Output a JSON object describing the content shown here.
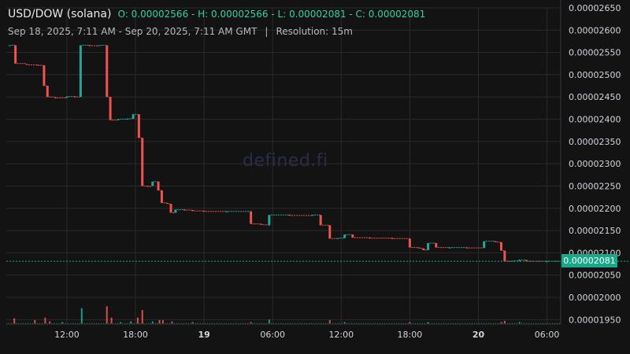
{
  "header": {
    "pair": "USD/DOW (solana)",
    "ohlc": "O: 0.00002566 - H: 0.00002566 - L: 0.00002081 - C: 0.00002081",
    "range": "Sep 18, 2025, 7:11 AM - Sep 20, 2025, 7:11 AM GMT",
    "separator": "|",
    "resolution": "Resolution: 15m"
  },
  "watermark": "defined.fi",
  "last_price_label": "0.00002081",
  "colors": {
    "up": "#26a69a",
    "down": "#ef5350",
    "background": "#131313",
    "grid": "#2a2a2a",
    "axis_text": "#d1d4dc",
    "last_price_tag": "#1aa88a"
  },
  "chart_data": {
    "type": "candlestick",
    "title": "USD/DOW (solana)",
    "resolution": "15m",
    "ylim": [
      1.94e-05,
      2.65e-05
    ],
    "y_ticks": [
      "0.00002650",
      "0.00002600",
      "0.00002550",
      "0.00002500",
      "0.00002450",
      "0.00002400",
      "0.00002350",
      "0.00002300",
      "0.00002250",
      "0.00002200",
      "0.00002150",
      "0.00002100",
      "0.00002050",
      "0.00002000",
      "0.00001950"
    ],
    "x_ticks": [
      {
        "label": "12:00",
        "t": 5.0
      },
      {
        "label": "18:00",
        "t": 11.0
      },
      {
        "label": "19",
        "t": 17.0,
        "bold": true
      },
      {
        "label": "06:00",
        "t": 23.0
      },
      {
        "label": "12:00",
        "t": 29.0
      },
      {
        "label": "18:00",
        "t": 35.0
      },
      {
        "label": "20",
        "t": 41.0,
        "bold": true
      },
      {
        "label": "06:00",
        "t": 47.0
      }
    ],
    "candles": [
      {
        "t": 0.0,
        "o": 2.566e-05,
        "h": 2.566e-05,
        "l": 2.566e-05,
        "c": 2.566e-05
      },
      {
        "t": 0.5,
        "o": 2.566e-05,
        "h": 2.566e-05,
        "l": 2.525e-05,
        "c": 2.525e-05
      },
      {
        "t": 1.5,
        "o": 2.524e-05,
        "h": 2.524e-05,
        "l": 2.522e-05,
        "c": 2.522e-05
      },
      {
        "t": 2.5,
        "o": 2.522e-05,
        "h": 2.522e-05,
        "l": 2.52e-05,
        "c": 2.521e-05
      },
      {
        "t": 3.0,
        "o": 2.521e-05,
        "h": 2.521e-05,
        "l": 2.475e-05,
        "c": 2.475e-05
      },
      {
        "t": 3.3,
        "o": 2.475e-05,
        "h": 2.475e-05,
        "l": 2.45e-05,
        "c": 2.45e-05
      },
      {
        "t": 4.0,
        "o": 2.449e-05,
        "h": 2.449e-05,
        "l": 2.447e-05,
        "c": 2.448e-05
      },
      {
        "t": 5.0,
        "o": 2.448e-05,
        "h": 2.451e-05,
        "l": 2.448e-05,
        "c": 2.451e-05
      },
      {
        "t": 5.7,
        "o": 2.451e-05,
        "h": 2.452e-05,
        "l": 2.45e-05,
        "c": 2.45e-05
      },
      {
        "t": 6.2,
        "o": 2.45e-05,
        "h": 2.566e-05,
        "l": 2.45e-05,
        "c": 2.566e-05
      },
      {
        "t": 7.0,
        "o": 2.566e-05,
        "h": 2.567e-05,
        "l": 2.565e-05,
        "c": 2.565e-05
      },
      {
        "t": 7.8,
        "o": 2.565e-05,
        "h": 2.566e-05,
        "l": 2.565e-05,
        "c": 2.566e-05
      },
      {
        "t": 8.5,
        "o": 2.566e-05,
        "h": 2.566e-05,
        "l": 2.45e-05,
        "c": 2.45e-05
      },
      {
        "t": 8.8,
        "o": 2.45e-05,
        "h": 2.45e-05,
        "l": 2.398e-05,
        "c": 2.398e-05
      },
      {
        "t": 9.5,
        "o": 2.398e-05,
        "h": 2.401e-05,
        "l": 2.398e-05,
        "c": 2.4e-05
      },
      {
        "t": 10.3,
        "o": 2.4e-05,
        "h": 2.402e-05,
        "l": 2.4e-05,
        "c": 2.401e-05
      },
      {
        "t": 10.8,
        "o": 2.401e-05,
        "h": 2.412e-05,
        "l": 2.401e-05,
        "c": 2.411e-05
      },
      {
        "t": 11.3,
        "o": 2.411e-05,
        "h": 2.411e-05,
        "l": 2.358e-05,
        "c": 2.358e-05
      },
      {
        "t": 11.6,
        "o": 2.358e-05,
        "h": 2.358e-05,
        "l": 2.25e-05,
        "c": 2.25e-05
      },
      {
        "t": 12.1,
        "o": 2.25e-05,
        "h": 2.25e-05,
        "l": 2.249e-05,
        "c": 2.249e-05
      },
      {
        "t": 12.5,
        "o": 2.25e-05,
        "h": 2.26e-05,
        "l": 2.25e-05,
        "c": 2.26e-05
      },
      {
        "t": 13.0,
        "o": 2.26e-05,
        "h": 2.26e-05,
        "l": 2.24e-05,
        "c": 2.24e-05
      },
      {
        "t": 13.3,
        "o": 2.24e-05,
        "h": 2.24e-05,
        "l": 2.212e-05,
        "c": 2.212e-05
      },
      {
        "t": 13.8,
        "o": 2.212e-05,
        "h": 2.212e-05,
        "l": 2.21e-05,
        "c": 2.21e-05
      },
      {
        "t": 14.1,
        "o": 2.21e-05,
        "h": 2.21e-05,
        "l": 2.19e-05,
        "c": 2.19e-05
      },
      {
        "t": 14.5,
        "o": 2.19e-05,
        "h": 2.197e-05,
        "l": 2.19e-05,
        "c": 2.197e-05
      },
      {
        "t": 15.3,
        "o": 2.197e-05,
        "h": 2.198e-05,
        "l": 2.196e-05,
        "c": 2.196e-05
      },
      {
        "t": 16.0,
        "o": 2.196e-05,
        "h": 2.196e-05,
        "l": 2.193e-05,
        "c": 2.194e-05
      },
      {
        "t": 17.0,
        "o": 2.194e-05,
        "h": 2.195e-05,
        "l": 2.193e-05,
        "c": 2.193e-05
      },
      {
        "t": 19.0,
        "o": 2.193e-05,
        "h": 2.194e-05,
        "l": 2.192e-05,
        "c": 2.193e-05
      },
      {
        "t": 21.1,
        "o": 2.193e-05,
        "h": 2.193e-05,
        "l": 2.165e-05,
        "c": 2.165e-05
      },
      {
        "t": 22.0,
        "o": 2.165e-05,
        "h": 2.165e-05,
        "l": 2.163e-05,
        "c": 2.163e-05
      },
      {
        "t": 22.7,
        "o": 2.163e-05,
        "h": 2.185e-05,
        "l": 2.16e-05,
        "c": 2.185e-05
      },
      {
        "t": 24.5,
        "o": 2.185e-05,
        "h": 2.186e-05,
        "l": 2.184e-05,
        "c": 2.184e-05
      },
      {
        "t": 26.5,
        "o": 2.184e-05,
        "h": 2.186e-05,
        "l": 2.184e-05,
        "c": 2.185e-05
      },
      {
        "t": 27.2,
        "o": 2.185e-05,
        "h": 2.185e-05,
        "l": 2.162e-05,
        "c": 2.162e-05
      },
      {
        "t": 28.0,
        "o": 2.162e-05,
        "h": 2.162e-05,
        "l": 2.132e-05,
        "c": 2.132e-05
      },
      {
        "t": 28.7,
        "o": 2.132e-05,
        "h": 2.133e-05,
        "l": 2.131e-05,
        "c": 2.133e-05
      },
      {
        "t": 29.3,
        "o": 2.133e-05,
        "h": 2.141e-05,
        "l": 2.133e-05,
        "c": 2.141e-05
      },
      {
        "t": 30.0,
        "o": 2.141e-05,
        "h": 2.141e-05,
        "l": 2.134e-05,
        "c": 2.134e-05
      },
      {
        "t": 31.5,
        "o": 2.134e-05,
        "h": 2.135e-05,
        "l": 2.132e-05,
        "c": 2.133e-05
      },
      {
        "t": 33.5,
        "o": 2.133e-05,
        "h": 2.134e-05,
        "l": 2.132e-05,
        "c": 2.132e-05
      },
      {
        "t": 35.0,
        "o": 2.132e-05,
        "h": 2.132e-05,
        "l": 2.112e-05,
        "c": 2.112e-05
      },
      {
        "t": 35.8,
        "o": 2.112e-05,
        "h": 2.112e-05,
        "l": 2.11e-05,
        "c": 2.11e-05
      },
      {
        "t": 36.2,
        "o": 2.11e-05,
        "h": 2.11e-05,
        "l": 2.106e-05,
        "c": 2.106e-05
      },
      {
        "t": 36.6,
        "o": 2.106e-05,
        "h": 2.122e-05,
        "l": 2.106e-05,
        "c": 2.122e-05
      },
      {
        "t": 37.3,
        "o": 2.122e-05,
        "h": 2.122e-05,
        "l": 2.112e-05,
        "c": 2.112e-05
      },
      {
        "t": 38.5,
        "o": 2.112e-05,
        "h": 2.113e-05,
        "l": 2.111e-05,
        "c": 2.112e-05
      },
      {
        "t": 40.0,
        "o": 2.112e-05,
        "h": 2.113e-05,
        "l": 2.111e-05,
        "c": 2.111e-05
      },
      {
        "t": 41.5,
        "o": 2.111e-05,
        "h": 2.126e-05,
        "l": 2.111e-05,
        "c": 2.126e-05
      },
      {
        "t": 42.5,
        "o": 2.126e-05,
        "h": 2.126e-05,
        "l": 2.124e-05,
        "c": 2.124e-05
      },
      {
        "t": 43.0,
        "o": 2.124e-05,
        "h": 2.124e-05,
        "l": 2.105e-05,
        "c": 2.105e-05
      },
      {
        "t": 43.3,
        "o": 2.105e-05,
        "h": 2.105e-05,
        "l": 2.081e-05,
        "c": 2.081e-05
      },
      {
        "t": 44.0,
        "o": 2.082e-05,
        "h": 2.082e-05,
        "l": 2.081e-05,
        "c": 2.082e-05
      },
      {
        "t": 44.6,
        "o": 2.082e-05,
        "h": 2.085e-05,
        "l": 2.081e-05,
        "c": 2.084e-05
      },
      {
        "t": 45.2,
        "o": 2.084e-05,
        "h": 2.084e-05,
        "l": 2.081e-05,
        "c": 2.081e-05
      },
      {
        "t": 47.0,
        "o": 2.081e-05,
        "h": 2.082e-05,
        "l": 2.08e-05,
        "c": 2.081e-05
      }
    ],
    "volume": [
      {
        "t": 0.4,
        "v": 0.08,
        "dir": "down"
      },
      {
        "t": 2.2,
        "v": 0.05,
        "dir": "down"
      },
      {
        "t": 3.1,
        "v": 0.09,
        "dir": "down"
      },
      {
        "t": 3.5,
        "v": 0.03,
        "dir": "down"
      },
      {
        "t": 4.6,
        "v": 0.02,
        "dir": "up"
      },
      {
        "t": 6.3,
        "v": 0.24,
        "dir": "up"
      },
      {
        "t": 8.5,
        "v": 0.27,
        "dir": "down"
      },
      {
        "t": 8.9,
        "v": 0.09,
        "dir": "down"
      },
      {
        "t": 9.7,
        "v": 0.02,
        "dir": "up"
      },
      {
        "t": 10.6,
        "v": 0.03,
        "dir": "up"
      },
      {
        "t": 11.2,
        "v": 0.09,
        "dir": "down"
      },
      {
        "t": 11.6,
        "v": 0.21,
        "dir": "down"
      },
      {
        "t": 12.5,
        "v": 0.03,
        "dir": "up"
      },
      {
        "t": 13.1,
        "v": 0.05,
        "dir": "down"
      },
      {
        "t": 13.4,
        "v": 0.05,
        "dir": "down"
      },
      {
        "t": 14.2,
        "v": 0.03,
        "dir": "down"
      },
      {
        "t": 16.0,
        "v": 0.02,
        "dir": "down"
      },
      {
        "t": 21.1,
        "v": 0.02,
        "dir": "down"
      },
      {
        "t": 22.7,
        "v": 0.06,
        "dir": "up"
      },
      {
        "t": 28.0,
        "v": 0.05,
        "dir": "down"
      },
      {
        "t": 29.3,
        "v": 0.02,
        "dir": "up"
      },
      {
        "t": 35.0,
        "v": 0.02,
        "dir": "down"
      },
      {
        "t": 36.6,
        "v": 0.02,
        "dir": "up"
      },
      {
        "t": 43.0,
        "v": 0.02,
        "dir": "down"
      },
      {
        "t": 43.3,
        "v": 0.04,
        "dir": "down"
      },
      {
        "t": 44.6,
        "v": 0.02,
        "dir": "up"
      }
    ],
    "last_price": 2.081e-05
  }
}
